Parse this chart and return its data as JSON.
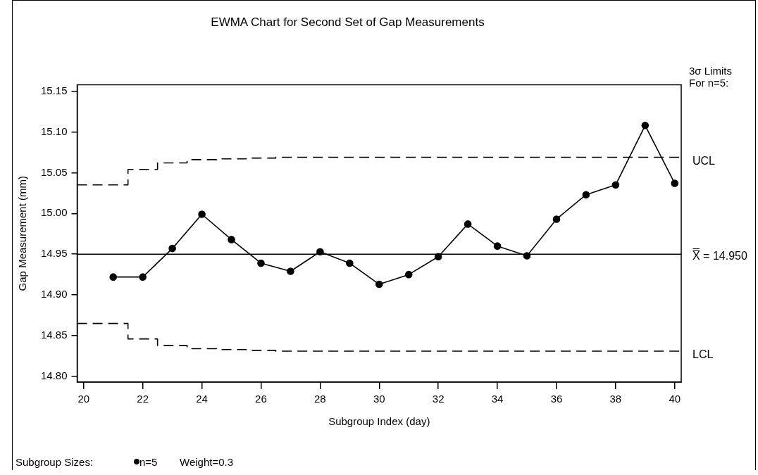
{
  "chart_data": {
    "type": "line",
    "title": "EWMA Chart for Second Set of Gap Measurements",
    "xlabel": "Subgroup Index (day)",
    "ylabel": "Gap Measurement (mm)",
    "x": [
      21,
      22,
      23,
      24,
      25,
      26,
      27,
      28,
      29,
      30,
      31,
      32,
      33,
      34,
      35,
      36,
      37,
      38,
      39,
      40
    ],
    "series": [
      {
        "color": "#000000",
        "marker": "circle",
        "line_style": "solid",
        "values": [
          14.922,
          14.922,
          14.957,
          14.999,
          14.968,
          14.939,
          14.929,
          14.953,
          14.939,
          14.913,
          14.925,
          14.947,
          14.987,
          14.96,
          14.948,
          14.993,
          15.023,
          15.035,
          15.108,
          15.037
        ]
      },
      {
        "name": "UCL",
        "type": "step",
        "color": "#000000",
        "marker": "none",
        "line_style": "dashed",
        "x": [
          19.78,
          21.5,
          22.5,
          23.5,
          24.5,
          25.5,
          26.5,
          40.22
        ],
        "values": [
          15.035,
          15.054,
          15.062,
          15.066,
          15.067,
          15.068,
          15.069,
          15.069
        ]
      },
      {
        "name": "LCL",
        "type": "step",
        "color": "#000000",
        "marker": "none",
        "line_style": "dashed",
        "x": [
          19.78,
          21.5,
          22.5,
          23.5,
          24.5,
          25.5,
          26.5,
          40.22
        ],
        "values": [
          14.865,
          14.846,
          14.838,
          14.834,
          14.833,
          14.832,
          14.831,
          14.831
        ]
      }
    ],
    "ref_lines": [
      {
        "axis": "y",
        "value": 14.95,
        "label": "X̿ = 14.950",
        "color": "#000000",
        "line_style": "solid"
      }
    ],
    "xlim": [
      19.78,
      40.22
    ],
    "xticks": [
      20,
      22,
      24,
      26,
      28,
      30,
      32,
      34,
      36,
      38,
      40
    ],
    "ylim": [
      14.793,
      15.158
    ],
    "yticks": [
      {
        "value": 14.8,
        "label": "14.80"
      },
      14.85,
      {
        "value": 14.9,
        "label": "14.90"
      },
      14.95,
      {
        "value": 15.0,
        "label": "15.00"
      },
      15.05,
      {
        "value": 15.1,
        "label": "15.10"
      },
      15.15
    ],
    "grid": false,
    "legend": false,
    "annotations": [
      "3σ Limits",
      "For n=5:",
      "Subgroup Sizes:",
      "n=5",
      "Weight=0.3"
    ]
  }
}
